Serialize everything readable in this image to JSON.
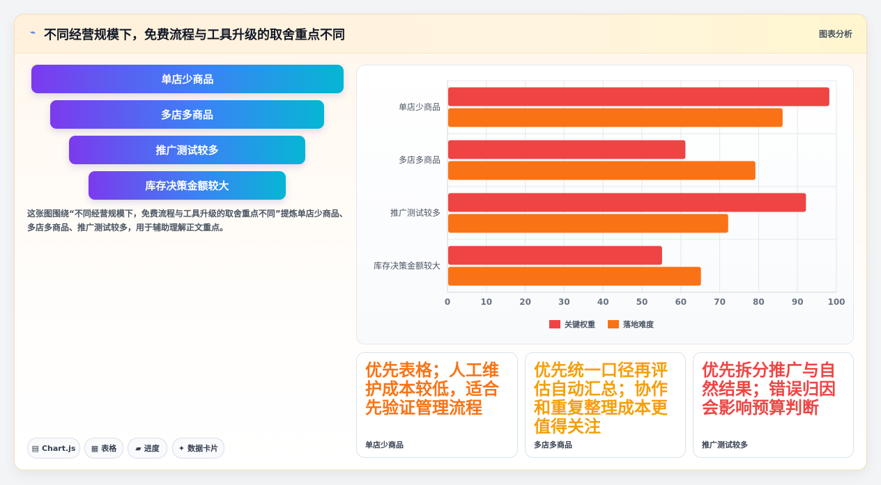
{
  "header": {
    "title": "不同经营规模下，免费流程与工具升级的取舍重点不同",
    "badge": "图表分析",
    "icon": "pulse-icon"
  },
  "funnel": [
    "单店少商品",
    "多店多商品",
    "推广测试较多",
    "库存决策金额较大"
  ],
  "description": "这张图围绕“不同经营规模下，免费流程与工具升级的取舍重点不同”提炼单店少商品、多店多商品、推广测试较多，用于辅助理解正文重点。",
  "chips": [
    {
      "icon": "chart-icon",
      "glyph": "▤",
      "label": "Chart.js"
    },
    {
      "icon": "table-icon",
      "glyph": "▦",
      "label": "表格"
    },
    {
      "icon": "progress-icon",
      "glyph": "▰",
      "label": "进度"
    },
    {
      "icon": "card-icon",
      "glyph": "✦",
      "label": "数据卡片"
    }
  ],
  "chart_data": {
    "type": "bar",
    "orientation": "horizontal",
    "categories": [
      "单店少商品",
      "多店多商品",
      "推广测试较多",
      "库存决策金额较大"
    ],
    "series": [
      {
        "name": "关键权重",
        "values": [
          98,
          61,
          92,
          55
        ],
        "color": "#ef4444"
      },
      {
        "name": "落地难度",
        "values": [
          86,
          79,
          72,
          65
        ],
        "color": "#f97316"
      }
    ],
    "xlim": [
      0,
      100
    ],
    "ticks": [
      0,
      10,
      20,
      30,
      40,
      50,
      60,
      70,
      80,
      90,
      100
    ],
    "grid": true,
    "legend": "bottom"
  },
  "cards": [
    {
      "text": "优先表格；人工维护成本较低，适合先验证管理流程",
      "label": "单店少商品",
      "color": "#f97316"
    },
    {
      "text": "优先统一口径再评估自动汇总；协作和重复整理成本更值得关注",
      "label": "多店多商品",
      "color": "#f59e0b"
    },
    {
      "text": "优先拆分推广与自然结果；错误归因会影响预算判断",
      "label": "推广测试较多",
      "color": "#ef4444"
    }
  ]
}
